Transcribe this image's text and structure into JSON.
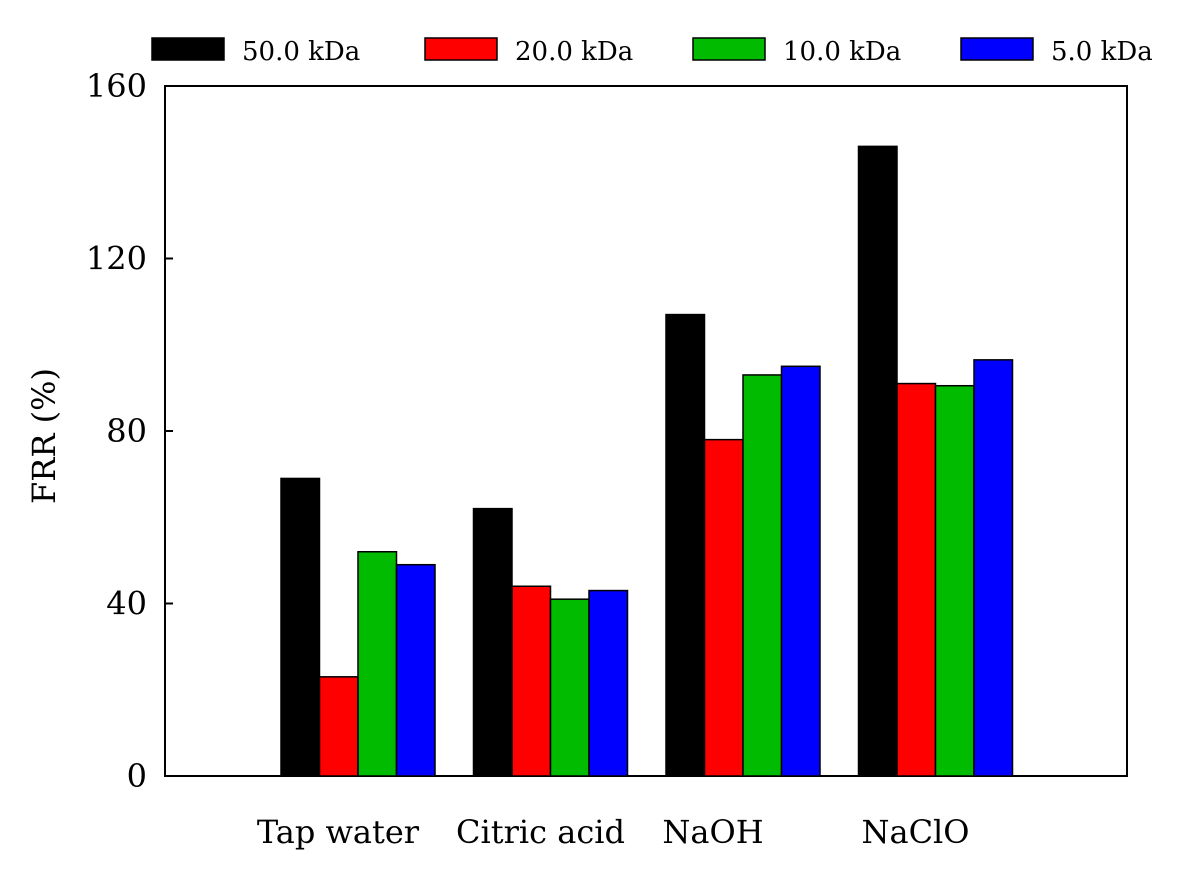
{
  "chart_data": {
    "type": "bar",
    "title": "",
    "xlabel": "",
    "ylabel": "FRR (%)",
    "ylim": [
      0,
      160
    ],
    "yticks": [
      0,
      40,
      80,
      120,
      160
    ],
    "grid": false,
    "legend_position": "top",
    "categories": [
      "Tap water",
      "Citric acid",
      "NaOH",
      "NaClO"
    ],
    "series": [
      {
        "name": "50.0 kDa",
        "color": "#000000",
        "values": [
          69,
          62,
          107,
          146
        ]
      },
      {
        "name": "20.0 kDa",
        "color": "#ff0000",
        "values": [
          23,
          44,
          78,
          91
        ]
      },
      {
        "name": "10.0 kDa",
        "color": "#00bb00",
        "values": [
          52,
          41,
          93,
          90.5
        ]
      },
      {
        "name": "5.0 kDa",
        "color": "#0000ff",
        "values": [
          49,
          43,
          95,
          96.5
        ]
      }
    ]
  }
}
